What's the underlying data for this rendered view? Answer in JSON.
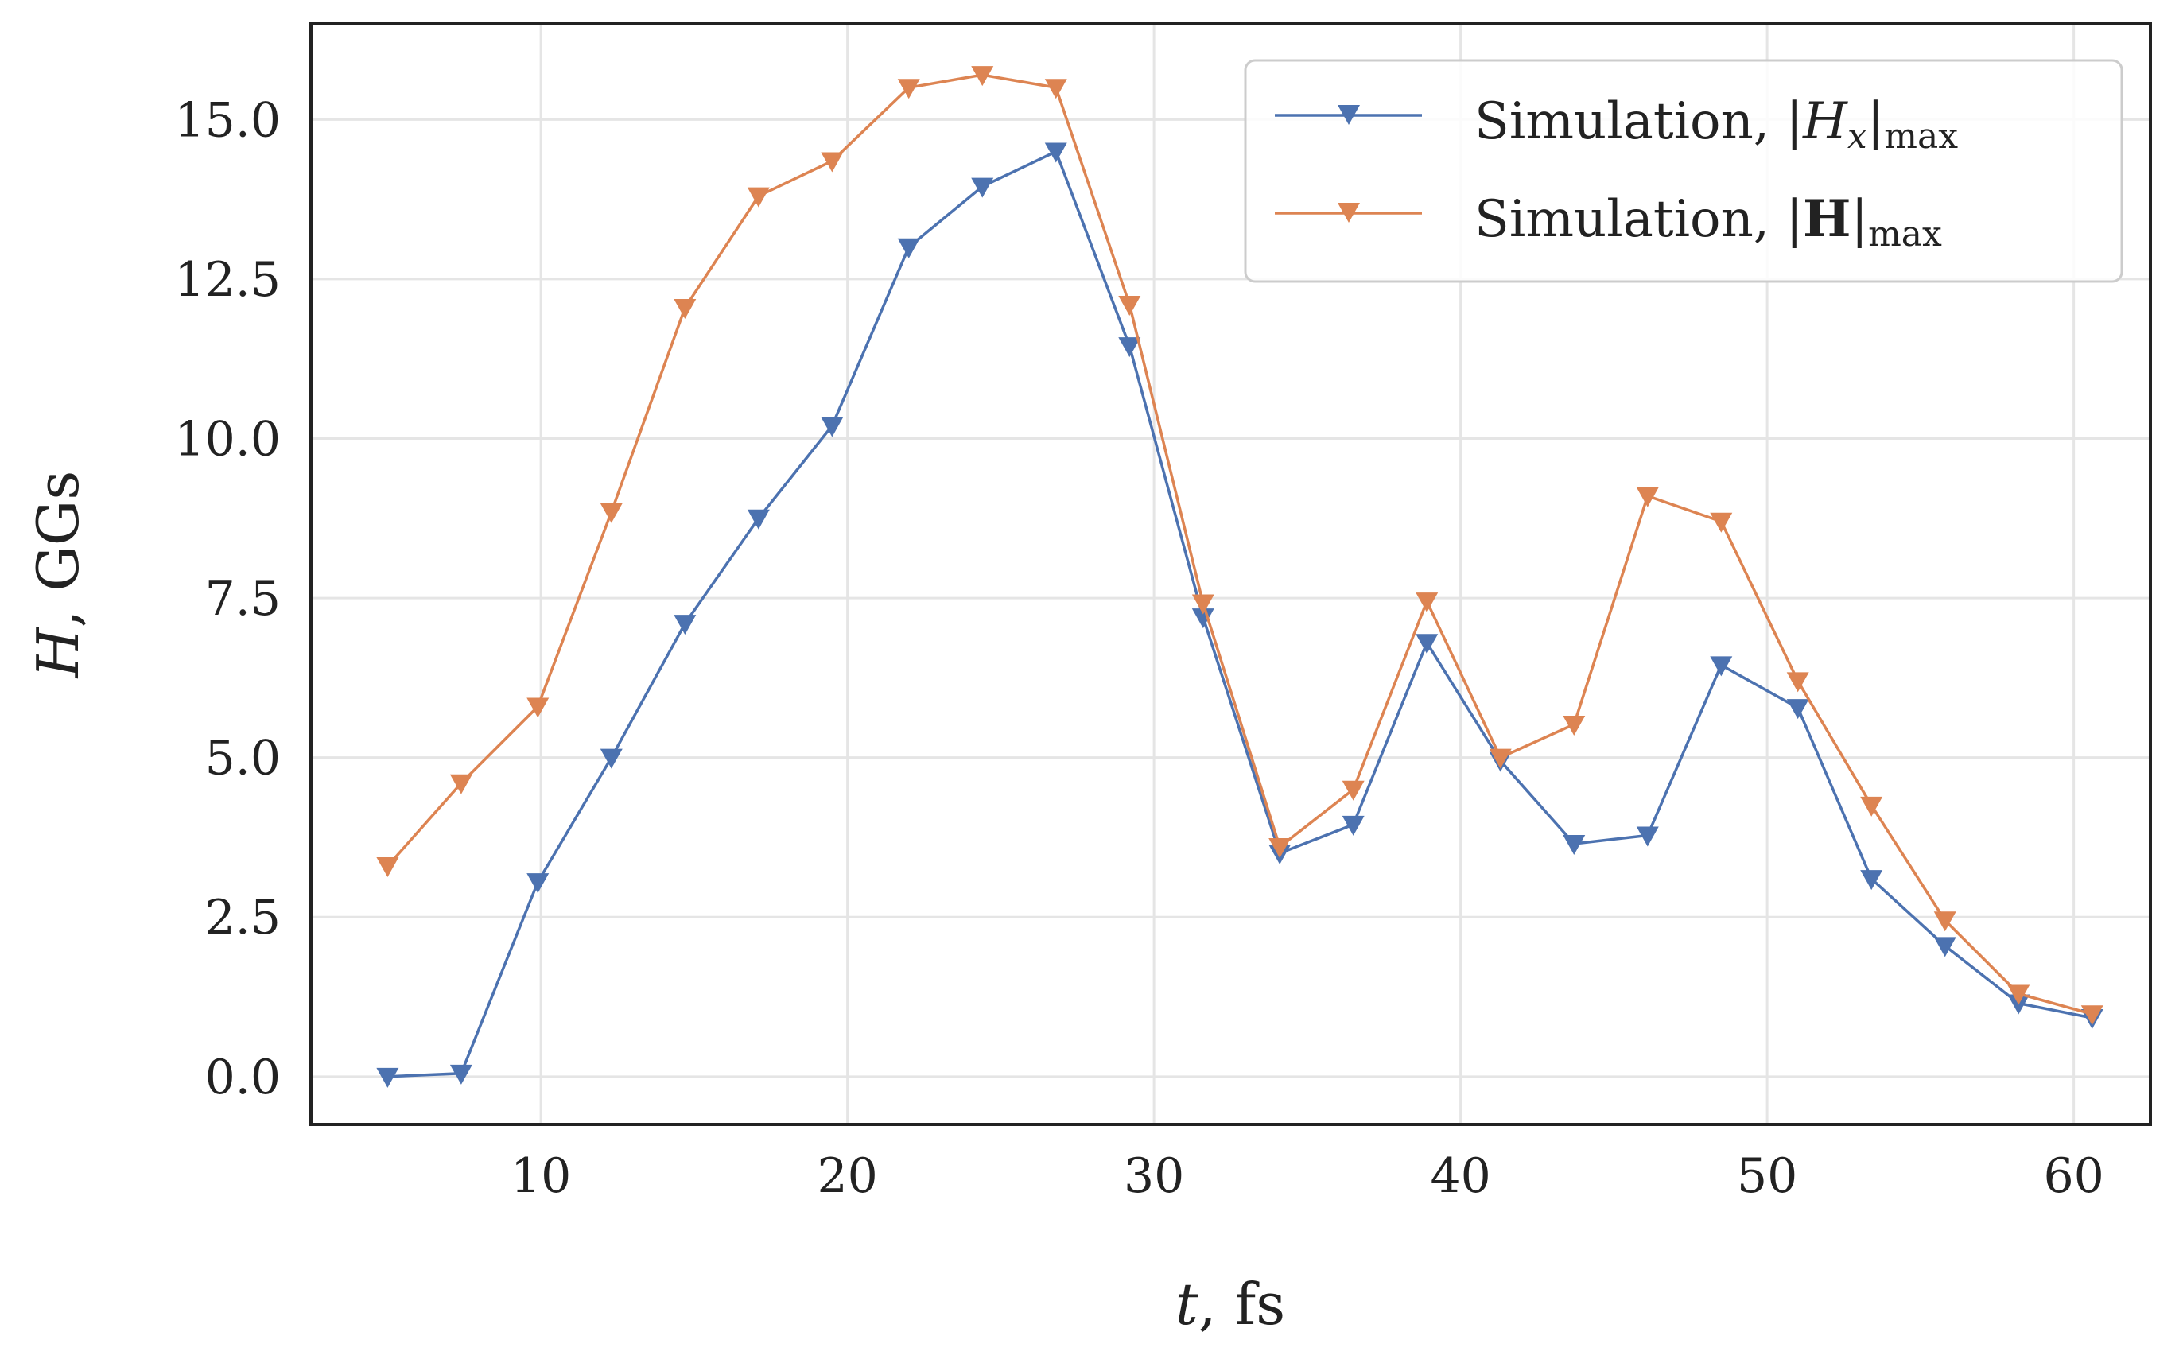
{
  "chart_data": {
    "type": "line",
    "xlabel": "t, fs",
    "ylabel": "H, GGs",
    "xlim": [
      2.5,
      62.5
    ],
    "ylim": [
      -0.75,
      16.5
    ],
    "xticks": [
      10,
      20,
      30,
      40,
      50,
      60
    ],
    "xtick_labels": [
      "10",
      "20",
      "30",
      "40",
      "50",
      "60"
    ],
    "yticks": [
      0,
      2.5,
      5,
      7.5,
      10,
      12.5,
      15
    ],
    "ytick_labels": [
      "0.0",
      "2.5",
      "5.0",
      "7.5",
      "10.0",
      "12.5",
      "15.0"
    ],
    "grid": true,
    "legend_position": "top-right",
    "marker": "triangle-down",
    "x": [
      5,
      7.4,
      9.9,
      12.3,
      14.7,
      17.1,
      19.5,
      22.0,
      24.4,
      26.8,
      29.2,
      31.6,
      34.1,
      36.5,
      38.9,
      41.3,
      43.7,
      46.1,
      48.5,
      51.0,
      53.4,
      55.8,
      58.2,
      60.6
    ],
    "series": [
      {
        "name": "Simulation, |H_x|max",
        "color": "#4c72b0",
        "values": [
          0.0,
          0.05,
          3.05,
          5.0,
          7.1,
          8.75,
          10.2,
          13.0,
          13.95,
          14.5,
          11.45,
          7.2,
          3.5,
          3.95,
          6.8,
          4.95,
          3.65,
          3.78,
          6.45,
          5.78,
          3.1,
          2.05,
          1.15,
          0.92
        ]
      },
      {
        "name": "Simulation, |H|max",
        "color": "#dd8452",
        "values": [
          3.3,
          4.6,
          5.8,
          8.85,
          12.05,
          13.8,
          14.35,
          15.5,
          15.7,
          15.5,
          12.1,
          7.42,
          3.6,
          4.5,
          7.45,
          5.0,
          5.52,
          9.1,
          8.7,
          6.2,
          4.25,
          2.45,
          1.3,
          0.98
        ]
      }
    ]
  },
  "legend": {
    "entry1_prefix": "Simulation, |",
    "entry1_var": "H",
    "entry1_sub": "x",
    "entry1_bar": "|",
    "entry1_suffix": "max",
    "entry2_prefix": "Simulation, |",
    "entry2_var": "H",
    "entry2_bar": "|",
    "entry2_suffix": "max"
  },
  "axes": {
    "x_var": "t",
    "x_unit": ", fs",
    "y_var": "H",
    "y_unit": ", GGs"
  }
}
